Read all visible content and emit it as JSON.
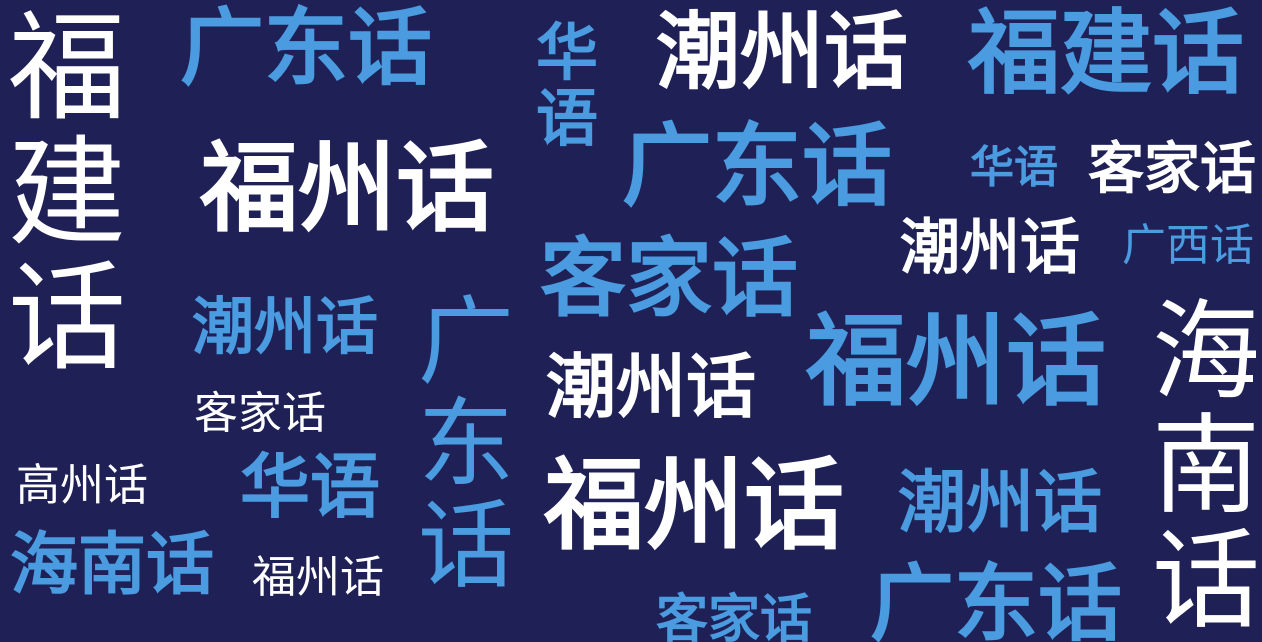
{
  "colors": {
    "background": "#1f2156",
    "white": "#ffffff",
    "blue": "#4a9be0"
  },
  "words": {
    "w1": "福建话",
    "w2": "广东话",
    "w3": "华语",
    "w4": "潮州话",
    "w5": "福建话",
    "w6": "福州话",
    "w7": "广东话",
    "w8": "华语",
    "w9": "客家话",
    "w10": "潮州话",
    "w11": "广西话",
    "w12": "客家话",
    "w13": "潮州话",
    "w14": "广东话",
    "w15": "福州话",
    "w16": "海南话",
    "w17": "客家话",
    "w18": "潮州话",
    "w19": "高州话",
    "w20": "华语",
    "w21": "福州话",
    "w22": "潮州话",
    "w23": "海南话",
    "w24": "福州话",
    "w25": "客家话",
    "w26": "广东话"
  }
}
